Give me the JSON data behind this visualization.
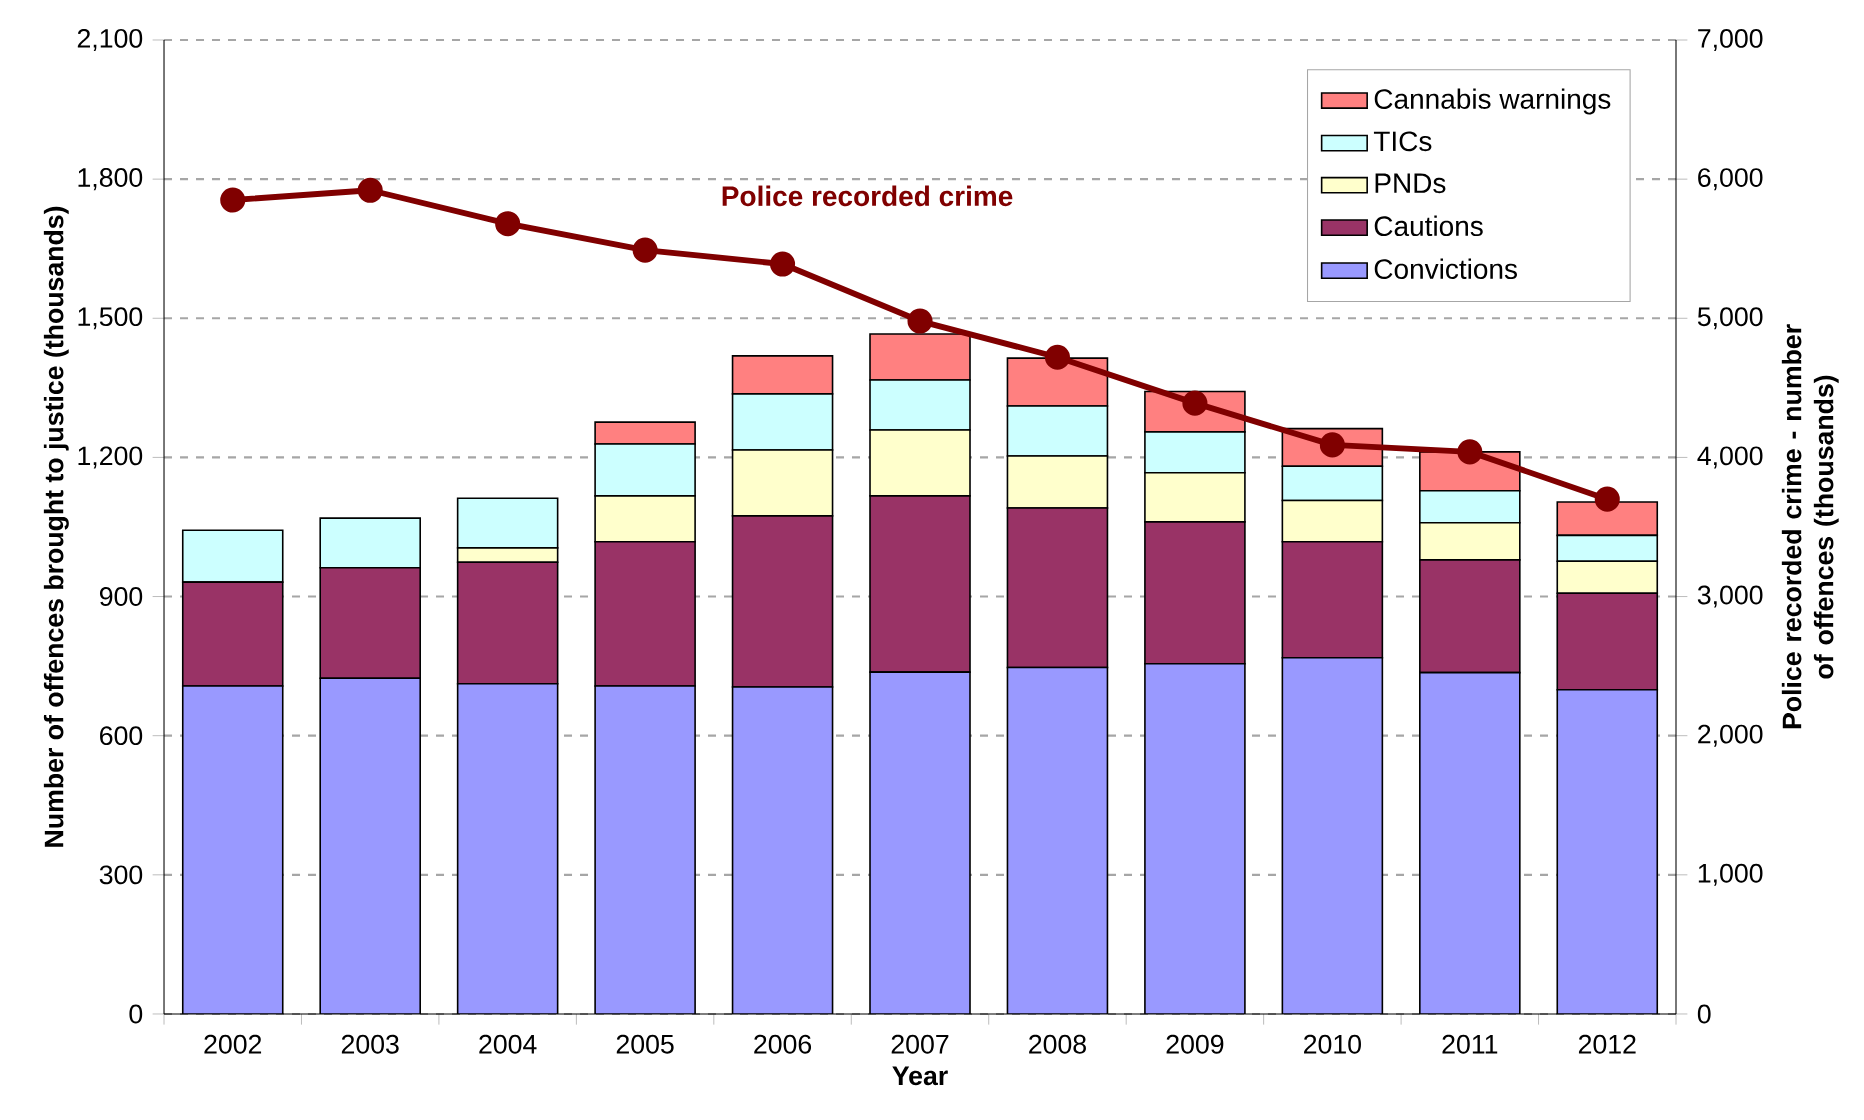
{
  "chart_data": {
    "type": "bar",
    "stacked": true,
    "xlabel": "Year",
    "ylabel": "Number of offences brought to justice (thousands)",
    "y2label": "Police recorded crime - number of offences (thousands)",
    "categories": [
      "2002",
      "2003",
      "2004",
      "2005",
      "2006",
      "2007",
      "2008",
      "2009",
      "2010",
      "2011",
      "2012"
    ],
    "series": [
      {
        "name": "Convictions",
        "color": "#9999ff",
        "values": [
          707,
          724,
          712,
          707,
          705,
          737,
          747,
          755,
          768,
          736,
          699
        ]
      },
      {
        "name": "Cautions",
        "color": "#993366",
        "values": [
          224,
          238,
          262,
          311,
          369,
          380,
          344,
          306,
          250,
          243,
          208
        ]
      },
      {
        "name": "PNDs",
        "color": "#ffffcc",
        "values": [
          0,
          0,
          31,
          99,
          142,
          142,
          112,
          106,
          89,
          80,
          69
        ]
      },
      {
        "name": "TICs",
        "color": "#ccffff",
        "values": [
          112,
          107,
          107,
          112,
          121,
          108,
          108,
          88,
          74,
          69,
          56
        ]
      },
      {
        "name": "Cannabis warnings",
        "color": "#ff8080",
        "values": [
          0,
          0,
          0,
          47,
          82,
          99,
          103,
          87,
          81,
          84,
          72
        ]
      },
      {
        "name": "Police recorded crime",
        "type": "line",
        "axis": "y2",
        "color": "#800000",
        "values": [
          5850,
          5920,
          5680,
          5490,
          5390,
          4980,
          4720,
          4390,
          4090,
          4040,
          3700
        ]
      }
    ],
    "ylim": [
      0,
      2100
    ],
    "yticks": [
      0,
      300,
      600,
      900,
      {
        "value": 1200,
        "label": "1,200"
      },
      {
        "value": 1500,
        "label": "1,500"
      },
      {
        "value": 1800,
        "label": "1,800"
      },
      {
        "value": 2100,
        "label": "2,100"
      }
    ],
    "y2lim": [
      0,
      7000
    ],
    "y2ticks": [
      0,
      {
        "value": 1000,
        "label": "1,000"
      },
      {
        "value": 2000,
        "label": "2,000"
      },
      {
        "value": 3000,
        "label": "3,000"
      },
      {
        "value": 4000,
        "label": "4,000"
      },
      {
        "value": 5000,
        "label": "5,000"
      },
      {
        "value": 6000,
        "label": "6,000"
      },
      {
        "value": 7000,
        "label": "7,000"
      }
    ],
    "grid": "y",
    "legend": "top right",
    "marker": "circle"
  }
}
